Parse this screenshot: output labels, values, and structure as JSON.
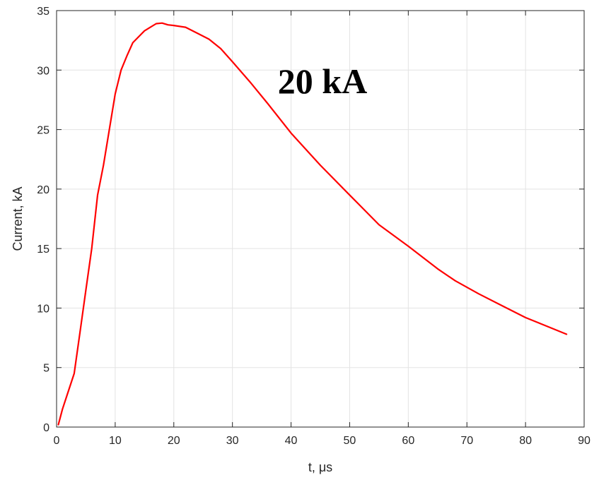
{
  "chart_data": {
    "type": "line",
    "xlabel": "t, μs",
    "ylabel": "Current, kA",
    "xlim": [
      0,
      90
    ],
    "ylim": [
      0,
      35
    ],
    "xticks": [
      0,
      10,
      20,
      30,
      40,
      50,
      60,
      70,
      80,
      90
    ],
    "yticks": [
      0,
      5,
      10,
      15,
      20,
      25,
      30,
      35
    ],
    "grid": true,
    "annotation": "20 kA",
    "series": [
      {
        "color": "#ff0000",
        "x": [
          0.3,
          1.0,
          2.0,
          3.0,
          4.0,
          5.0,
          6.0,
          7.0,
          8.0,
          9.0,
          10.0,
          11.0,
          12.0,
          13.0,
          14.0,
          15.0,
          16.0,
          17.0,
          18.0,
          19.0,
          20.0,
          22.0,
          24.0,
          26.0,
          28.0,
          30.0,
          33.0,
          36.0,
          40.0,
          45.0,
          50.0,
          55.0,
          60.0,
          65.0,
          68.0,
          72.0,
          76.0,
          80.0,
          84.0,
          87.0
        ],
        "y": [
          0.2,
          1.5,
          3.0,
          4.5,
          8.0,
          11.5,
          15.0,
          19.5,
          22.0,
          25.0,
          28.0,
          30.0,
          31.2,
          32.3,
          32.8,
          33.3,
          33.6,
          33.9,
          33.95,
          33.8,
          33.75,
          33.6,
          33.1,
          32.6,
          31.8,
          30.7,
          29.0,
          27.2,
          24.7,
          22.0,
          19.5,
          17.0,
          15.2,
          13.3,
          12.3,
          11.2,
          10.2,
          9.2,
          8.4,
          7.8
        ]
      }
    ]
  }
}
